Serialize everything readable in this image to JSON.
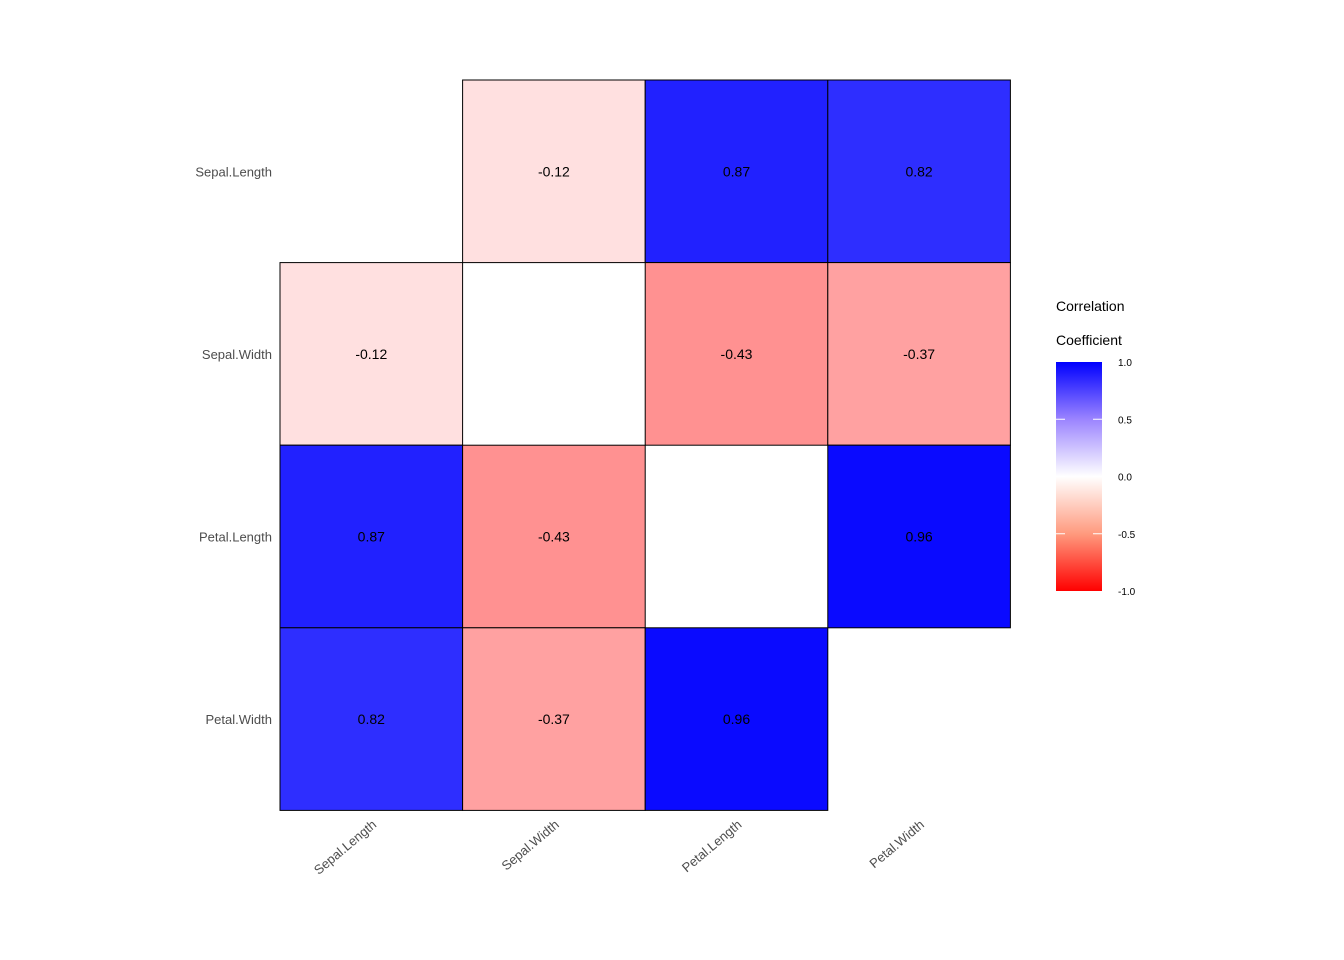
{
  "chart_data": {
    "type": "heatmap",
    "title": "",
    "xlabel": "",
    "ylabel": "",
    "variables": [
      "Sepal.Length",
      "Sepal.Width",
      "Petal.Length",
      "Petal.Width"
    ],
    "matrix": [
      [
        null,
        -0.12,
        0.87,
        0.82
      ],
      [
        -0.12,
        null,
        -0.43,
        -0.37
      ],
      [
        0.87,
        -0.43,
        null,
        0.96
      ],
      [
        0.82,
        -0.37,
        0.96,
        null
      ]
    ],
    "labels": [
      [
        "",
        "-0.12",
        "0.87",
        "0.82"
      ],
      [
        "-0.12",
        "",
        "-0.43",
        "-0.37"
      ],
      [
        "0.87",
        "-0.43",
        "",
        "0.96"
      ],
      [
        "0.82",
        "-0.37",
        "0.96",
        ""
      ]
    ],
    "color_scale": {
      "low": "#ff0000",
      "mid": "#ffffff",
      "high": "#0000ff",
      "limits": [
        -1,
        1
      ]
    },
    "legend": {
      "title_line1": "Correlation",
      "title_line2": "Coefficient",
      "ticks": [
        1.0,
        0.5,
        0.0,
        -0.5,
        -1.0
      ],
      "tick_labels": [
        "1.0",
        "0.5",
        "0.0",
        "-0.5",
        "-1.0"
      ],
      "placement": "right"
    },
    "grid": false
  }
}
